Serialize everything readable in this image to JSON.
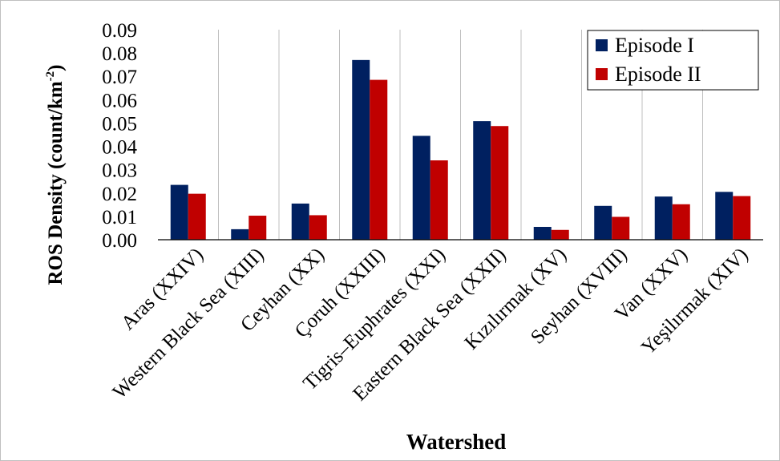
{
  "chart_data": {
    "type": "bar",
    "title": "",
    "xlabel": "Watershed",
    "ylabel": "ROS Density (count/km",
    "ylabel_sup": "-2",
    "ylabel_close": ")",
    "ylim": [
      0,
      0.09
    ],
    "yticks": [
      "0.00",
      "0.01",
      "0.02",
      "0.03",
      "0.04",
      "0.05",
      "0.06",
      "0.07",
      "0.08",
      "0.09"
    ],
    "grid": "vertical separators",
    "legend_position": "top-right",
    "categories": [
      "Aras (XXIV)",
      "Western Black Sea (XIII)",
      "Ceyhan (XX)",
      "Çoruh (XXIII)",
      "Tigris–Euphrates (XXI)",
      "Eastern Black Sea (XXII)",
      "Kızılırmak (XV)",
      "Seyhan (XVIII)",
      "Van (XXV)",
      "Yeşilırmak (XIV)"
    ],
    "series": [
      {
        "name": "Episode I",
        "color": "#002060",
        "values": [
          0.0235,
          0.0045,
          0.0155,
          0.077,
          0.0445,
          0.0508,
          0.0055,
          0.0145,
          0.0185,
          0.0205
        ]
      },
      {
        "name": "Episode II",
        "color": "#c00000",
        "values": [
          0.0197,
          0.0103,
          0.0105,
          0.0685,
          0.034,
          0.0487,
          0.0042,
          0.0098,
          0.0152,
          0.0187
        ]
      }
    ]
  }
}
